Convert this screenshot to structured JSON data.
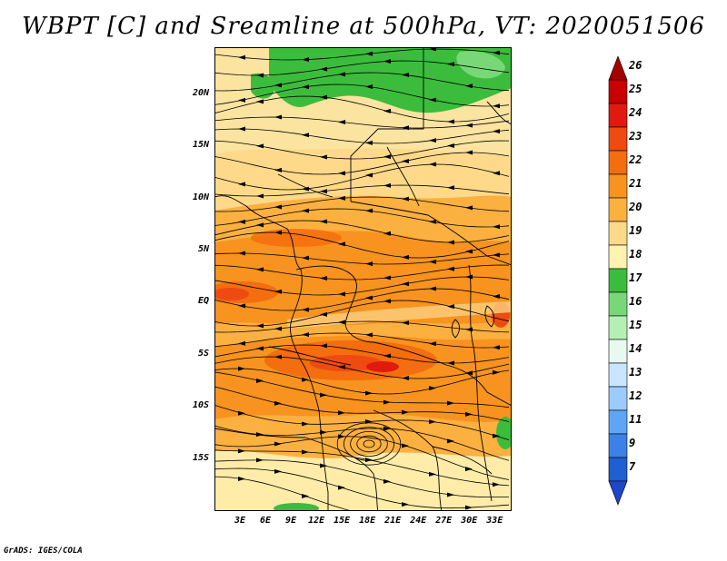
{
  "title": "WBPT [C] and Sreamline at 500hPa, VT: 2020051506",
  "footer": "GrADS: IGES/COLA",
  "map": {
    "variable": "Wet-bulb potential temperature and streamlines",
    "level": "500hPa",
    "region": "Central Africa",
    "lat_labels": [
      "20N",
      "15N",
      "10N",
      "5N",
      "EQ",
      "5S",
      "10S",
      "15S"
    ],
    "lat_values": [
      20,
      15,
      10,
      5,
      0,
      -5,
      -10,
      -15
    ],
    "lon_labels": [
      "3E",
      "6E",
      "9E",
      "12E",
      "15E",
      "18E",
      "21E",
      "24E",
      "27E",
      "30E",
      "33E"
    ],
    "lon_values": [
      3,
      6,
      9,
      12,
      15,
      18,
      21,
      24,
      27,
      30,
      33
    ],
    "lon_range": [
      0,
      35
    ],
    "lat_range": [
      -20,
      24.5
    ]
  },
  "colorbar": {
    "labels": [
      "26",
      "25",
      "24",
      "23",
      "22",
      "21",
      "20",
      "19",
      "18",
      "17",
      "16",
      "15",
      "14",
      "13",
      "12",
      "11",
      "9",
      "7"
    ],
    "colors": [
      "#a50000",
      "#c80000",
      "#e11a10",
      "#ee4b12",
      "#f46d0f",
      "#f7931e",
      "#fbb040",
      "#ffd98a",
      "#fff3b0",
      "#3cbc3c",
      "#78d878",
      "#b4f0b4",
      "#e8faf0",
      "#c8e6ff",
      "#9ccbff",
      "#5fa5f5",
      "#3c82e6",
      "#1e5fd2",
      "#1e46c8"
    ],
    "colors_order": "top-to-bottom"
  }
}
